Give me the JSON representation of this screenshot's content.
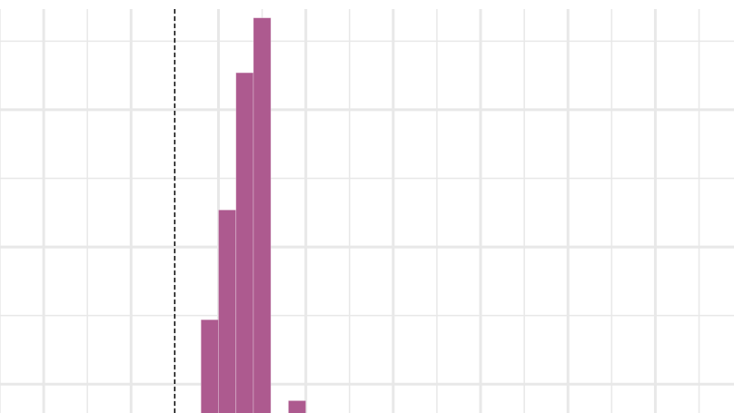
{
  "chart_data": {
    "type": "bar",
    "title": "",
    "xlabel": "",
    "ylabel": "",
    "bar_color": "#ad5a8f",
    "grid": true,
    "grid_color": "#e8e8e8",
    "x_axis": {
      "visible_range": [
        -0.5,
        7.9
      ],
      "gridlines": [
        0,
        1,
        2,
        3,
        4,
        5,
        6,
        7
      ],
      "minor_gridlines": [
        -0.5,
        0.5,
        1.5,
        2.5,
        3.5,
        4.5,
        5.5,
        6.5,
        7.5
      ]
    },
    "y_axis": {
      "visible_range": [
        0.29,
        3.3
      ],
      "gridlines": [
        0.5,
        1.5,
        2.5
      ],
      "minor_gridlines": [
        1.0,
        2.0,
        3.0
      ]
    },
    "reference_line": {
      "x": 1.5,
      "style": "dashed",
      "color": "#000000"
    },
    "bins": [
      {
        "x_start": 1.8,
        "x_end": 2.0,
        "value": 0.97
      },
      {
        "x_start": 2.0,
        "x_end": 2.2,
        "value": 1.77
      },
      {
        "x_start": 2.2,
        "x_end": 2.4,
        "value": 2.77
      },
      {
        "x_start": 2.4,
        "x_end": 2.6,
        "value": 3.17
      },
      {
        "x_start": 2.8,
        "x_end": 3.0,
        "value": 0.38
      }
    ]
  }
}
